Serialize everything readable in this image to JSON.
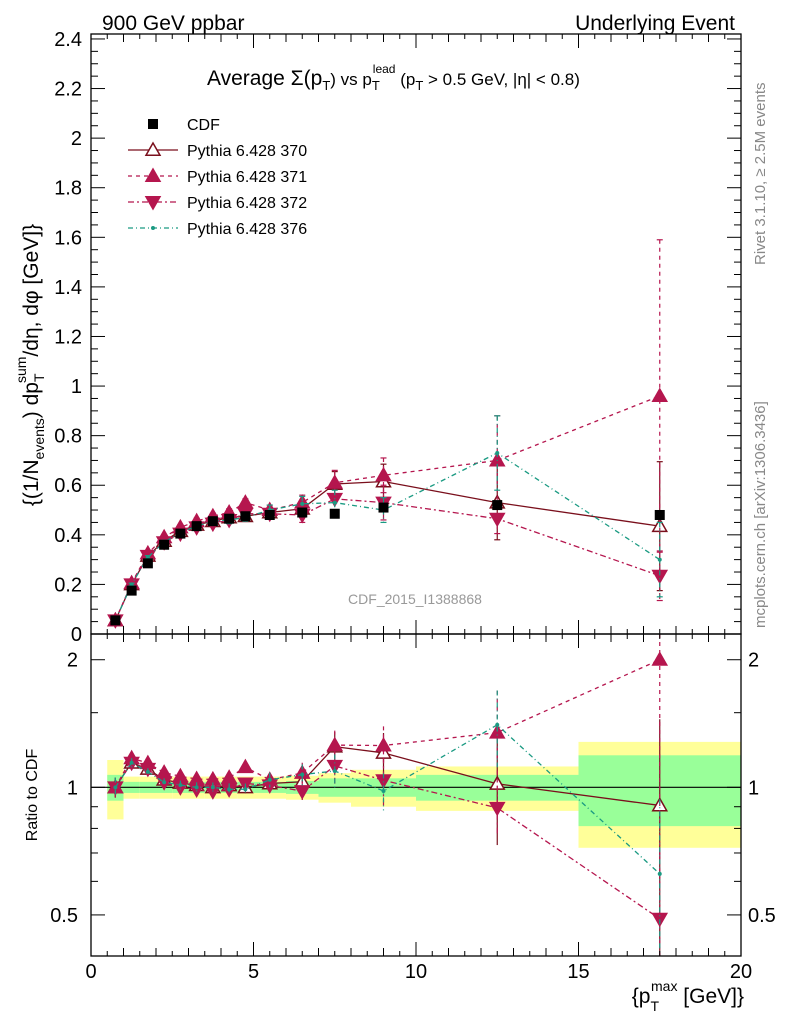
{
  "header": {
    "left": "900 GeV ppbar",
    "right": "Underlying Event"
  },
  "side_labels": {
    "rivet": "Rivet 3.1.10, ≥ 2.5M events",
    "mcplots": "mcplots.cern.ch [arXiv:1306.3436]"
  },
  "watermark": "CDF_2015_I1388868",
  "axis_labels": {
    "ylabel_main": "{(1/N_events) dp_T^sum/dη, dφ [GeV]}",
    "ylabel_ratio": "Ratio to CDF",
    "xlabel": "{p_T^max [GeV]}"
  },
  "chart_data": {
    "type": "line",
    "title": "Average Σ(p_T) vs p_T^lead (p_T > 0.5 GeV, |η| < 0.8)",
    "xlim": [
      0,
      20
    ],
    "ylim": [
      0,
      2.42
    ],
    "ratio_ylim": [
      0.4,
      2.3
    ],
    "ratio_scale": "log",
    "x_ticks": [
      "0",
      "5",
      "10",
      "15",
      "20"
    ],
    "y_ticks": [
      "0",
      "0.2",
      "0.4",
      "0.6",
      "0.8",
      "1",
      "1.2",
      "1.4",
      "1.6",
      "1.8",
      "2",
      "2.2",
      "2.4"
    ],
    "ratio_ticks": [
      "0.5",
      "1",
      "2"
    ],
    "legend": [
      "CDF",
      "Pythia 6.428 370",
      "Pythia 6.428 371",
      "Pythia 6.428 372",
      "Pythia 6.428 376"
    ],
    "legend_position": "top-left",
    "data": {
      "name": "CDF",
      "color": "#000000",
      "x": [
        0.75,
        1.25,
        1.75,
        2.25,
        2.75,
        3.25,
        3.75,
        4.25,
        4.75,
        5.5,
        6.5,
        7.5,
        9.0,
        12.5,
        17.5
      ],
      "y": [
        0.055,
        0.175,
        0.285,
        0.36,
        0.405,
        0.435,
        0.455,
        0.465,
        0.475,
        0.48,
        0.49,
        0.485,
        0.51,
        0.52,
        0.48
      ],
      "xerr": [
        0.25,
        0.25,
        0.25,
        0.25,
        0.25,
        0.25,
        0.25,
        0.25,
        0.25,
        0.5,
        0.5,
        0.5,
        1.0,
        2.5,
        2.5
      ],
      "band_green": [
        0.07,
        0.03,
        0.03,
        0.03,
        0.03,
        0.03,
        0.03,
        0.03,
        0.03,
        0.03,
        0.035,
        0.05,
        0.05,
        0.07,
        0.19
      ],
      "band_yellow": [
        0.16,
        0.06,
        0.06,
        0.06,
        0.06,
        0.06,
        0.06,
        0.06,
        0.06,
        0.06,
        0.065,
        0.08,
        0.1,
        0.12,
        0.28
      ]
    },
    "series": [
      {
        "name": "Pythia 6.428 370",
        "color": "#7a0f1c",
        "dash": "solid",
        "marker": "triangle-up-open",
        "x": [
          0.75,
          1.25,
          1.75,
          2.25,
          2.75,
          3.25,
          3.75,
          4.25,
          4.75,
          5.5,
          6.5,
          7.5,
          9.0,
          12.5,
          17.5
        ],
        "y": [
          0.055,
          0.2,
          0.315,
          0.375,
          0.415,
          0.44,
          0.455,
          0.47,
          0.475,
          0.49,
          0.505,
          0.605,
          0.615,
          0.53,
          0.435
        ],
        "yerr": [
          0.003,
          0.005,
          0.006,
          0.008,
          0.01,
          0.012,
          0.012,
          0.015,
          0.015,
          0.02,
          0.03,
          0.05,
          0.07,
          0.15,
          0.26
        ]
      },
      {
        "name": "Pythia 6.428 371",
        "color": "#b5164e",
        "dash": "4,4",
        "marker": "triangle-up-filled",
        "x": [
          0.75,
          1.25,
          1.75,
          2.25,
          2.75,
          3.25,
          3.75,
          4.25,
          4.75,
          5.5,
          6.5,
          7.5,
          9.0,
          12.5,
          17.5
        ],
        "y": [
          0.055,
          0.205,
          0.325,
          0.39,
          0.43,
          0.455,
          0.475,
          0.49,
          0.53,
          0.5,
          0.53,
          0.61,
          0.64,
          0.7,
          0.96
        ],
        "yerr": [
          0.003,
          0.005,
          0.006,
          0.008,
          0.01,
          0.012,
          0.012,
          0.015,
          0.015,
          0.02,
          0.03,
          0.05,
          0.07,
          0.18,
          0.63
        ]
      },
      {
        "name": "Pythia 6.428 372",
        "color": "#b5164e",
        "dash": "6,3,2,3",
        "marker": "triangle-down-filled",
        "x": [
          0.75,
          1.25,
          1.75,
          2.25,
          2.75,
          3.25,
          3.75,
          4.25,
          4.75,
          5.5,
          6.5,
          7.5,
          9.0,
          12.5,
          17.5
        ],
        "y": [
          0.055,
          0.2,
          0.315,
          0.37,
          0.405,
          0.43,
          0.445,
          0.46,
          0.485,
          0.485,
          0.48,
          0.545,
          0.53,
          0.465,
          0.235
        ],
        "yerr": [
          0.003,
          0.005,
          0.006,
          0.008,
          0.01,
          0.012,
          0.012,
          0.015,
          0.015,
          0.02,
          0.03,
          0.05,
          0.07,
          0.06,
          0.1
        ]
      },
      {
        "name": "Pythia 6.428 376",
        "color": "#1a9a82",
        "dash": "5,3,1,3",
        "marker": "dot",
        "x": [
          0.75,
          1.25,
          1.75,
          2.25,
          2.75,
          3.25,
          3.75,
          4.25,
          4.75,
          5.5,
          6.5,
          7.5,
          9.0,
          12.5,
          17.5
        ],
        "y": [
          0.055,
          0.2,
          0.31,
          0.37,
          0.41,
          0.435,
          0.455,
          0.46,
          0.47,
          0.5,
          0.525,
          0.53,
          0.5,
          0.73,
          0.3
        ],
        "yerr": [
          0.003,
          0.005,
          0.006,
          0.008,
          0.01,
          0.012,
          0.012,
          0.015,
          0.015,
          0.02,
          0.03,
          0.05,
          0.05,
          0.15,
          0.15
        ]
      }
    ]
  }
}
